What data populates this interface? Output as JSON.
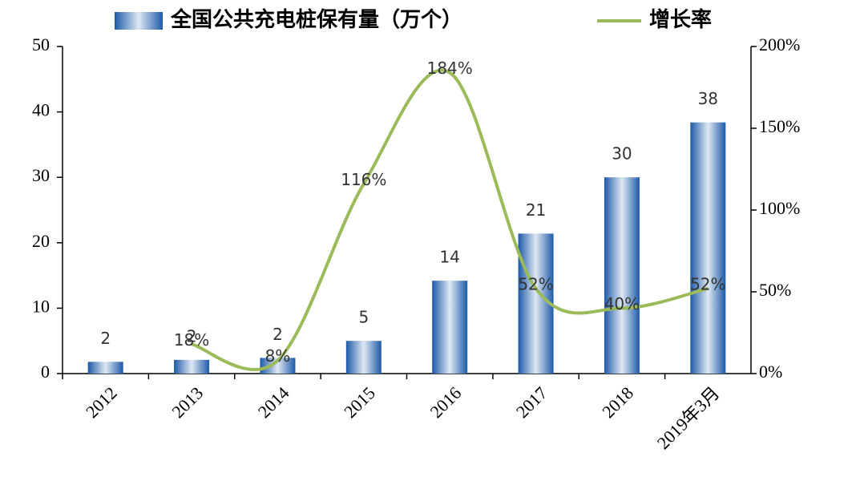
{
  "chart_data": {
    "type": "bar-line",
    "categories": [
      "2012",
      "2013",
      "2014",
      "2015",
      "2016",
      "2017",
      "2018",
      "2019年3月"
    ],
    "series": [
      {
        "name": "全国公共充电桩保有量（万个）",
        "color": "#2e6db4",
        "values": [
          1.8,
          2.1,
          2.4,
          5,
          14.2,
          21.4,
          30,
          38.4
        ],
        "value_labels": [
          "2",
          "2",
          "2",
          "5",
          "14",
          "21",
          "30",
          "38"
        ]
      },
      {
        "name": "增长率",
        "color": "#9bbb59",
        "axis": "y2",
        "values": [
          null,
          18,
          8,
          116,
          184,
          52,
          40,
          52
        ],
        "value_labels": [
          null,
          "18%",
          "8%",
          "116%",
          "184%",
          "52%",
          "40%",
          "52%"
        ]
      }
    ],
    "ylim": [
      0,
      50
    ],
    "yticks": [
      0,
      10,
      20,
      30,
      40,
      50
    ],
    "y2lim": [
      0,
      200
    ],
    "y2ticks": [
      {
        "value": 0,
        "label": "0%"
      },
      {
        "value": 50,
        "label": "50%"
      },
      {
        "value": 100,
        "label": "100%"
      },
      {
        "value": 150,
        "label": "150%"
      },
      {
        "value": 200,
        "label": "200%"
      }
    ],
    "legend": "top"
  }
}
